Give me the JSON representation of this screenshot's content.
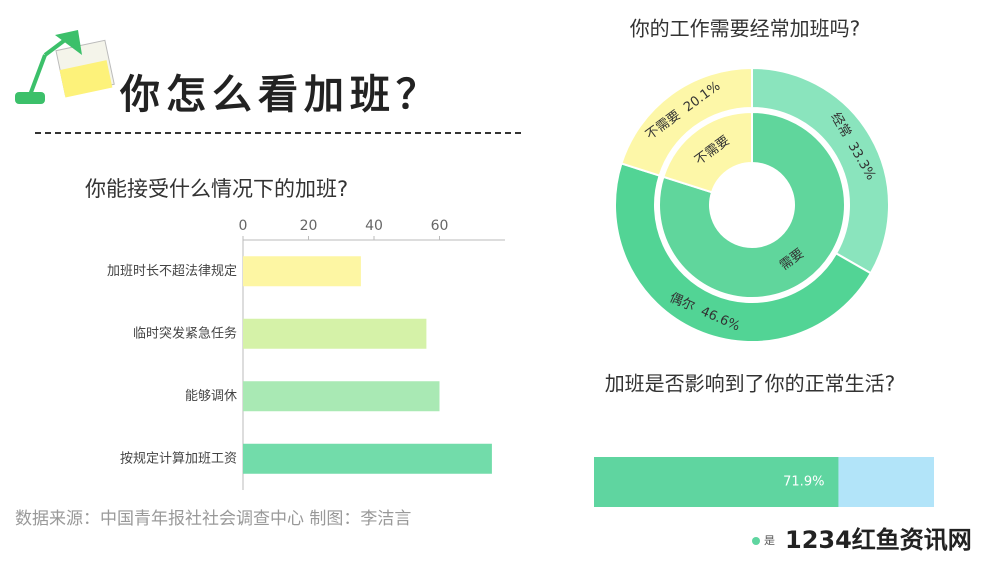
{
  "header": {
    "title": "你怎么看加班？"
  },
  "source": "数据来源：中国青年报社社会调查中心  制图：李洁言",
  "watermark": "1234红鱼资讯网",
  "chart_data": [
    {
      "type": "hbar",
      "title": "你能接受什么情况下的加班?",
      "categories": [
        "加班时长不超法律规定",
        "临时突发紧急任务",
        "能够调休",
        "按规定计算加班工资"
      ],
      "values": [
        36,
        56,
        60,
        76
      ],
      "colors": [
        "#fdf6a3",
        "#d5f2a8",
        "#a9e9b4",
        "#72dcaa"
      ],
      "xlim": [
        0,
        80
      ],
      "xticks": [
        0,
        20,
        40,
        60
      ]
    },
    {
      "type": "donut",
      "title": "你的工作需要经常加班吗?",
      "rings": [
        {
          "categories": [
            "经常",
            "偶尔",
            "不需要"
          ],
          "values": [
            33.3,
            46.6,
            20.1
          ],
          "value_labels": [
            "33.3%",
            "46.6%",
            "20.1%"
          ],
          "colors": [
            "#8ae4bd",
            "#52d495",
            "#fdf7a8"
          ]
        },
        {
          "categories": [
            "需要",
            "不需要"
          ],
          "values": [
            79.9,
            20.1
          ],
          "colors": [
            "#60d69c",
            "#fdf7a8"
          ]
        }
      ]
    },
    {
      "type": "stacked",
      "title": "加班是否影响到了你的正常生活?",
      "xlim": [
        0,
        100
      ],
      "series": [
        {
          "name": "是",
          "color": "#5fd5a0",
          "values": [
            71.9
          ],
          "value_labels": [
            "71.9%"
          ]
        },
        {
          "color": "#b2e4f9",
          "values": [
            28.1
          ]
        }
      ]
    }
  ]
}
